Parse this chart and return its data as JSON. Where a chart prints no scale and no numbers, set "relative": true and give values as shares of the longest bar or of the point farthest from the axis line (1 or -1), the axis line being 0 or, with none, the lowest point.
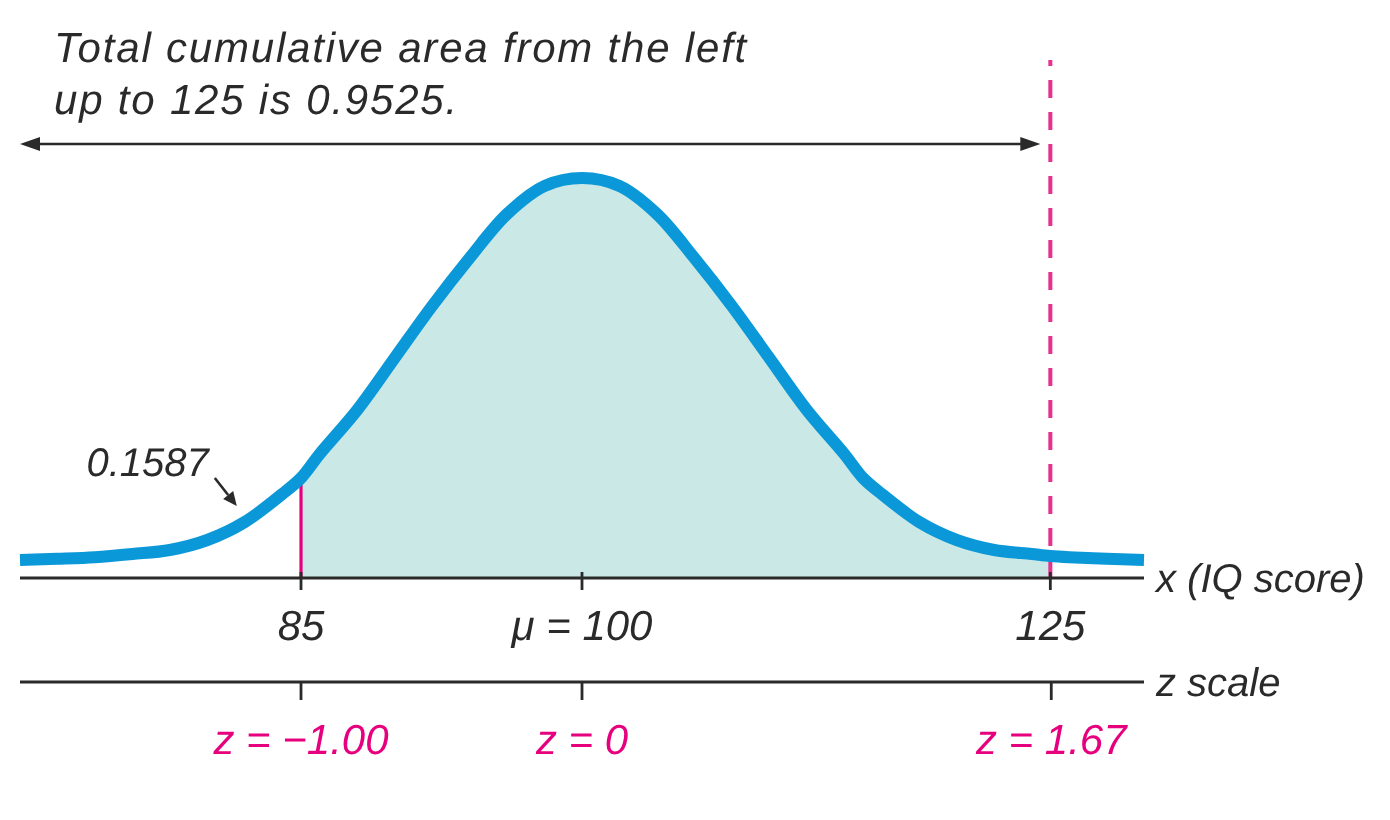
{
  "chart_data": {
    "type": "line",
    "relative": true,
    "xlabel": "x (IQ score)",
    "x2label": "z scale",
    "xlim": [
      70,
      130
    ],
    "xticks": [
      85,
      {
        "value": 100,
        "label": "μ = 100"
      },
      125
    ],
    "x2lim": [
      -2,
      2
    ],
    "x2ticks": [
      {
        "value": -1,
        "label": "z = −1.00"
      },
      {
        "value": 0,
        "label": "z = 0"
      },
      {
        "value": 1.67,
        "label": "z = 1.67"
      }
    ],
    "series": [
      {
        "type": "area",
        "color": "#c9e8e6",
        "x": [
          85,
          86,
          88,
          90,
          92,
          94,
          96,
          98,
          100,
          102,
          104,
          106,
          108,
          110,
          112,
          114,
          115,
          116,
          118,
          120,
          122,
          124,
          125
        ],
        "values": [
          0.25,
          0.31,
          0.42,
          0.55,
          0.68,
          0.8,
          0.91,
          0.98,
          1,
          0.98,
          0.91,
          0.8,
          0.68,
          0.55,
          0.42,
          0.31,
          0.25,
          0.21,
          0.14,
          0.095,
          0.07,
          0.06,
          0.055
        ]
      },
      {
        "color": "#0b98d8",
        "x": [
          70,
          72,
          74,
          76,
          78,
          80,
          82,
          84,
          85,
          86,
          88,
          90,
          92,
          94,
          96,
          98,
          100,
          102,
          104,
          106,
          108,
          110,
          112,
          114,
          115,
          116,
          118,
          120,
          122,
          124,
          125,
          126,
          128,
          130
        ],
        "values": [
          0.045,
          0.048,
          0.052,
          0.06,
          0.07,
          0.095,
          0.14,
          0.21,
          0.25,
          0.31,
          0.42,
          0.55,
          0.68,
          0.8,
          0.91,
          0.98,
          1,
          0.98,
          0.91,
          0.8,
          0.68,
          0.55,
          0.42,
          0.31,
          0.25,
          0.21,
          0.14,
          0.095,
          0.07,
          0.06,
          0.055,
          0.052,
          0.048,
          0.045
        ]
      }
    ],
    "ref_lines": [
      {
        "axis": "x",
        "value": 85,
        "color": "#e6007e",
        "line_style": "solid"
      },
      {
        "axis": "x",
        "value": 125,
        "color": "#e8308c",
        "line_style": "dashed"
      }
    ],
    "annotations": [
      "Total cumulative area from the left\nup to 125 is 0.9525.",
      {
        "text": "0.1587",
        "x": 82,
        "y": 0.14
      }
    ]
  }
}
